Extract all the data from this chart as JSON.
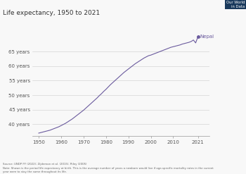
{
  "title": "Life expectancy, 1950 to 2021",
  "line_color": "#6b5b9e",
  "background_color": "#f8f8f8",
  "plot_bg_color": "#f8f8f8",
  "label_color": "#555555",
  "grid_color": "#cccccc",
  "yticks": [
    40,
    45,
    50,
    55,
    60,
    65
  ],
  "xticks": [
    1950,
    1960,
    1970,
    1980,
    1990,
    2000,
    2010,
    2021
  ],
  "xlim": [
    1947,
    2026
  ],
  "ylim": [
    36,
    72
  ],
  "series_label": "Nepal",
  "owid_box_color": "#1a3a5c",
  "owid_red": "#c0392b",
  "footnote_line1": "Source: UNDP FF (2022); Zijdeman et al. (2015); Riley (2005)",
  "footnote_line2": "Note: Shown is the period life expectancy at birth. This is the average number of years a newborn would live if age-specific mortality rates in the current",
  "footnote_line3": "year were to stay the same throughout its life.",
  "years": [
    1950,
    1951,
    1952,
    1953,
    1954,
    1955,
    1956,
    1957,
    1958,
    1959,
    1960,
    1961,
    1962,
    1963,
    1964,
    1965,
    1966,
    1967,
    1968,
    1969,
    1970,
    1971,
    1972,
    1973,
    1974,
    1975,
    1976,
    1977,
    1978,
    1979,
    1980,
    1981,
    1982,
    1983,
    1984,
    1985,
    1986,
    1987,
    1988,
    1989,
    1990,
    1991,
    1992,
    1993,
    1994,
    1995,
    1996,
    1997,
    1998,
    1999,
    2000,
    2001,
    2002,
    2003,
    2004,
    2005,
    2006,
    2007,
    2008,
    2009,
    2010,
    2011,
    2012,
    2013,
    2014,
    2015,
    2016,
    2017,
    2018,
    2019,
    2020,
    2021
  ],
  "values": [
    36.9,
    37.1,
    37.3,
    37.5,
    37.7,
    37.9,
    38.2,
    38.5,
    38.8,
    39.1,
    39.5,
    39.9,
    40.3,
    40.8,
    41.3,
    41.8,
    42.4,
    43.0,
    43.6,
    44.2,
    44.8,
    45.5,
    46.2,
    46.9,
    47.6,
    48.3,
    49.0,
    49.8,
    50.5,
    51.3,
    52.0,
    52.8,
    53.6,
    54.3,
    55.0,
    55.7,
    56.4,
    57.1,
    57.8,
    58.4,
    59.0,
    59.6,
    60.2,
    60.8,
    61.3,
    61.8,
    62.3,
    62.8,
    63.2,
    63.6,
    63.8,
    64.1,
    64.4,
    64.7,
    65.0,
    65.3,
    65.6,
    65.9,
    66.2,
    66.5,
    66.7,
    66.9,
    67.1,
    67.3,
    67.6,
    67.8,
    68.0,
    68.2,
    68.5,
    69.0,
    68.0,
    70.1
  ]
}
